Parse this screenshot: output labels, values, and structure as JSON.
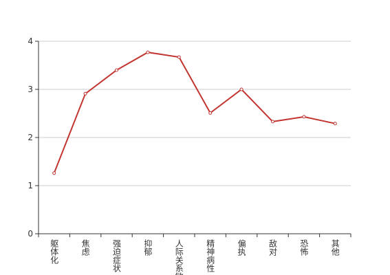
{
  "chart_data": {
    "type": "line",
    "categories": [
      "躯体化",
      "焦虑",
      "强迫症状",
      "抑郁",
      "人际关系敏感",
      "精神病性",
      "偏执",
      "敌对",
      "恐怖",
      "其他"
    ],
    "values": [
      1.26,
      2.91,
      3.4,
      3.77,
      3.67,
      2.51,
      3.0,
      2.33,
      2.43,
      2.29
    ],
    "color": "#c23531",
    "ylim": [
      0,
      4
    ],
    "yticks": [
      0,
      1,
      2,
      3,
      4
    ],
    "grid": true
  }
}
